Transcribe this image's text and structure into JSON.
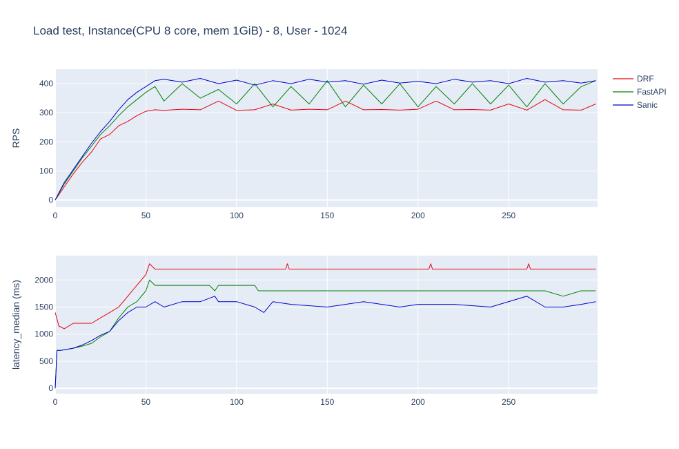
{
  "title": "Load test, Instance(CPU 8 core, mem 1GiB) - 8, User - 1024",
  "legend": [
    {
      "name": "DRF",
      "color": "#e8000b"
    },
    {
      "name": "FastAPI",
      "color": "#008000"
    },
    {
      "name": "Sanic",
      "color": "#0000cc"
    }
  ],
  "colors": {
    "plot_bg": "#e5ecf6",
    "grid": "#ffffff",
    "text": "#2a3f5f"
  },
  "chart_data": [
    {
      "type": "line",
      "ylabel": "RPS",
      "xlabel": "",
      "xlim": [
        0,
        299
      ],
      "ylim": [
        -25,
        450
      ],
      "x_ticks": [
        0,
        50,
        100,
        150,
        200,
        250
      ],
      "y_ticks": [
        0,
        100,
        200,
        300,
        400
      ],
      "grid": true,
      "series": [
        {
          "name": "DRF",
          "x": [
            0,
            5,
            10,
            15,
            20,
            25,
            30,
            35,
            40,
            45,
            50,
            55,
            60,
            70,
            80,
            90,
            100,
            110,
            120,
            130,
            140,
            150,
            160,
            170,
            180,
            190,
            200,
            210,
            220,
            230,
            240,
            250,
            260,
            270,
            280,
            290,
            298
          ],
          "y": [
            0,
            45,
            90,
            130,
            165,
            210,
            225,
            255,
            270,
            290,
            305,
            310,
            308,
            312,
            310,
            340,
            308,
            310,
            330,
            309,
            312,
            310,
            340,
            310,
            311,
            309,
            312,
            340,
            310,
            311,
            309,
            330,
            309,
            345,
            310,
            309,
            330
          ]
        },
        {
          "name": "FastAPI",
          "x": [
            0,
            5,
            10,
            15,
            20,
            25,
            30,
            35,
            40,
            45,
            50,
            55,
            60,
            70,
            80,
            90,
            100,
            110,
            120,
            130,
            140,
            150,
            160,
            170,
            180,
            190,
            200,
            210,
            220,
            230,
            240,
            250,
            260,
            270,
            280,
            290,
            298
          ],
          "y": [
            0,
            55,
            100,
            145,
            185,
            225,
            255,
            290,
            320,
            345,
            370,
            390,
            340,
            400,
            350,
            380,
            330,
            400,
            320,
            390,
            330,
            410,
            320,
            395,
            330,
            400,
            320,
            390,
            330,
            400,
            330,
            395,
            320,
            400,
            330,
            390,
            410
          ]
        },
        {
          "name": "Sanic",
          "x": [
            0,
            5,
            10,
            15,
            20,
            25,
            30,
            35,
            40,
            45,
            50,
            55,
            60,
            70,
            80,
            90,
            100,
            110,
            120,
            130,
            140,
            150,
            160,
            170,
            180,
            190,
            200,
            210,
            220,
            230,
            240,
            250,
            260,
            270,
            280,
            290,
            298
          ],
          "y": [
            0,
            60,
            105,
            150,
            195,
            235,
            270,
            310,
            345,
            370,
            390,
            410,
            415,
            405,
            418,
            400,
            412,
            395,
            410,
            400,
            415,
            405,
            410,
            398,
            412,
            402,
            408,
            400,
            415,
            405,
            410,
            400,
            418,
            405,
            410,
            402,
            410
          ]
        }
      ]
    },
    {
      "type": "line",
      "ylabel": "latency_median (ms)",
      "xlabel": "",
      "xlim": [
        0,
        299
      ],
      "ylim": [
        -100,
        2450
      ],
      "x_ticks": [
        0,
        50,
        100,
        150,
        200,
        250
      ],
      "y_ticks": [
        0,
        500,
        1000,
        1500,
        2000
      ],
      "grid": true,
      "series": [
        {
          "name": "DRF",
          "x": [
            0,
            2,
            5,
            10,
            15,
            20,
            25,
            30,
            35,
            40,
            45,
            50,
            52,
            55,
            60,
            100,
            127,
            128,
            129,
            130,
            150,
            200,
            206,
            207,
            208,
            210,
            250,
            260,
            261,
            262,
            265,
            298
          ],
          "y": [
            1400,
            1150,
            1100,
            1200,
            1200,
            1200,
            1300,
            1400,
            1500,
            1700,
            1900,
            2100,
            2300,
            2200,
            2200,
            2200,
            2200,
            2300,
            2200,
            2200,
            2200,
            2200,
            2200,
            2300,
            2200,
            2200,
            2200,
            2200,
            2300,
            2200,
            2200,
            2200
          ]
        },
        {
          "name": "FastAPI",
          "x": [
            0,
            1,
            3,
            10,
            15,
            20,
            25,
            30,
            35,
            40,
            45,
            50,
            52,
            55,
            60,
            85,
            88,
            90,
            100,
            110,
            112,
            120,
            140,
            150,
            160,
            180,
            200,
            220,
            240,
            270,
            280,
            290,
            298
          ],
          "y": [
            0,
            700,
            700,
            740,
            780,
            830,
            950,
            1050,
            1300,
            1500,
            1600,
            1800,
            2000,
            1900,
            1900,
            1900,
            1800,
            1900,
            1900,
            1900,
            1800,
            1800,
            1800,
            1800,
            1800,
            1800,
            1800,
            1800,
            1800,
            1800,
            1700,
            1800,
            1800
          ]
        },
        {
          "name": "Sanic",
          "x": [
            0,
            1,
            3,
            10,
            15,
            20,
            25,
            30,
            35,
            40,
            45,
            50,
            55,
            60,
            70,
            80,
            88,
            90,
            100,
            110,
            115,
            120,
            130,
            150,
            170,
            190,
            200,
            220,
            240,
            260,
            270,
            280,
            290,
            298
          ],
          "y": [
            0,
            700,
            700,
            740,
            800,
            880,
            980,
            1050,
            1250,
            1400,
            1500,
            1500,
            1600,
            1500,
            1600,
            1600,
            1700,
            1600,
            1600,
            1500,
            1400,
            1600,
            1550,
            1500,
            1600,
            1500,
            1550,
            1550,
            1500,
            1700,
            1500,
            1500,
            1550,
            1600
          ]
        }
      ]
    }
  ]
}
